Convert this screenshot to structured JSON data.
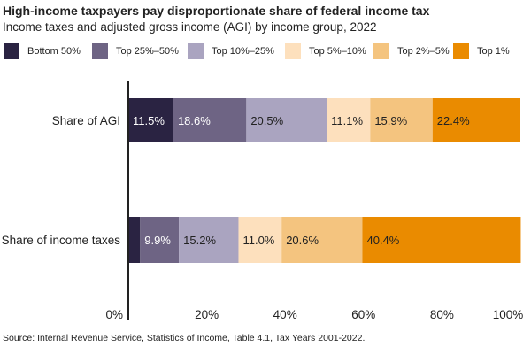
{
  "title": "High-income taxpayers pay disproportionate share of federal income tax",
  "subtitle": "Income taxes and adjusted gross income (AGI) by income group, 2022",
  "source": "Source: Internal Revenue Service, Statistics of Income, Table 4.1, Tax Years 2001-2022.",
  "colors": {
    "Bottom 50%": "#2a2342",
    "Top 25%–50%": "#6e6484",
    "Top 10%–25%": "#aaa4c0",
    "Top 5%–10%": "#fde0bd",
    "Top 2%–5%": "#f4c47f",
    "Top 1%": "#ea8b00"
  },
  "chart_data": {
    "type": "bar",
    "orientation": "horizontal",
    "stacked": true,
    "title": "High-income taxpayers pay disproportionate share of federal income tax",
    "subtitle": "Income taxes and adjusted gross income (AGI) by income group, 2022",
    "categories": [
      "Share of AGI",
      "Share of income taxes"
    ],
    "series": [
      {
        "name": "Bottom 50%",
        "values": [
          11.5,
          3.0
        ]
      },
      {
        "name": "Top 25%–50%",
        "values": [
          18.6,
          9.9
        ]
      },
      {
        "name": "Top 10%–25%",
        "values": [
          20.5,
          15.2
        ]
      },
      {
        "name": "Top 5%–10%",
        "values": [
          11.1,
          11.0
        ]
      },
      {
        "name": "Top 2%–5%",
        "values": [
          15.9,
          20.6
        ]
      },
      {
        "name": "Top 1%",
        "values": [
          22.4,
          40.4
        ]
      }
    ],
    "data_labels": [
      [
        "11.5%",
        "18.6%",
        "20.5%",
        "11.1%",
        "15.9%",
        "22.4%"
      ],
      [
        "",
        "9.9%",
        "15.2%",
        "11.0%",
        "20.6%",
        "40.4%"
      ]
    ],
    "xlim": [
      0,
      100
    ],
    "x_ticks": [
      0,
      20,
      40,
      60,
      80,
      100
    ],
    "x_tick_labels": [
      "0%",
      "20%",
      "40%",
      "60%",
      "80%",
      "100%"
    ],
    "xlabel": "",
    "ylabel": "",
    "grid": false,
    "legend_position": "top"
  }
}
